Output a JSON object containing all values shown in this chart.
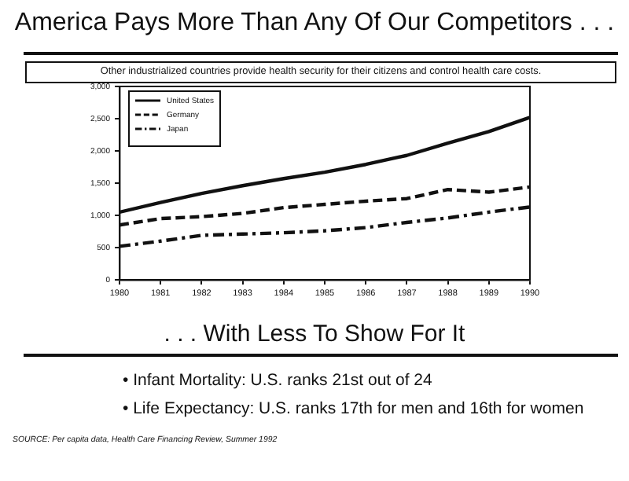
{
  "chart_data": {
    "type": "line",
    "title": "America Pays More Than Any Of Our Competitors . . .",
    "subtitle": "Other industrialized countries provide health security for their citizens and control health care costs.",
    "x": [
      1980,
      1981,
      1982,
      1983,
      1984,
      1985,
      1986,
      1987,
      1988,
      1989,
      1990
    ],
    "xlim": [
      1980,
      1990
    ],
    "xticks": [
      1980,
      1981,
      1982,
      1983,
      1984,
      1985,
      1986,
      1987,
      1988,
      1989,
      1990
    ],
    "ylim": [
      0,
      3000
    ],
    "yticks": [
      0,
      500,
      {
        "value": 1000,
        "label": "1,000"
      },
      {
        "value": 1500,
        "label": "1,500"
      },
      {
        "value": 2000,
        "label": "2,000"
      },
      {
        "value": 2500,
        "label": "2,500"
      },
      {
        "value": 3000,
        "label": "3,000"
      }
    ],
    "series": [
      {
        "name": "United States",
        "color": "#111111",
        "line_style": "solid",
        "values": [
          1050,
          1200,
          1340,
          1460,
          1570,
          1670,
          1790,
          1930,
          2120,
          2300,
          2520
        ]
      },
      {
        "name": "Germany",
        "color": "#111111",
        "line_style": "dashed",
        "values": [
          850,
          950,
          980,
          1030,
          1120,
          1170,
          1220,
          1260,
          1400,
          1360,
          1440
        ]
      },
      {
        "name": "Japan",
        "color": "#111111",
        "line_style": "dashdot",
        "values": [
          520,
          600,
          690,
          710,
          730,
          760,
          810,
          890,
          960,
          1050,
          1130
        ]
      }
    ],
    "grid": false,
    "legend": "top left",
    "marker": "none",
    "annotations": [
      ". . . With Less To Show For It",
      "• Infant Mortality: U.S. ranks 21st out of 24",
      "• Life Expectancy: U.S. ranks 17th for men and 16th for women",
      "SOURCE: Per capita data, Health Care Financing Review, Summer 1992"
    ]
  }
}
